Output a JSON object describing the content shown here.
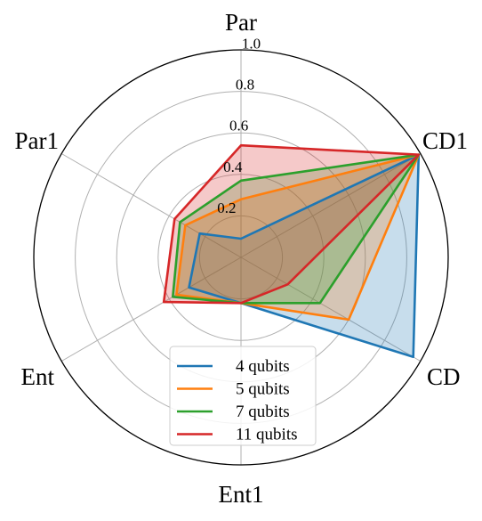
{
  "chart_data": {
    "type": "radar",
    "axes": [
      "Par",
      "CD1",
      "CD",
      "Ent1",
      "Ent",
      "Par1"
    ],
    "rlim": [
      0,
      1.0
    ],
    "r_ticks": [
      "0.2",
      "0.4",
      "0.6",
      "0.8",
      "1.0"
    ],
    "grid": true,
    "legend_position": "bottom-center",
    "series": [
      {
        "name": "4 qubits",
        "color": "#1f77b4",
        "values": [
          0.09,
          0.99,
          0.96,
          0.22,
          0.29,
          0.23
        ]
      },
      {
        "name": "5 qubits",
        "color": "#ff7f0e",
        "values": [
          0.28,
          0.99,
          0.6,
          0.22,
          0.36,
          0.31
        ]
      },
      {
        "name": "7 qubits",
        "color": "#2ca02c",
        "values": [
          0.37,
          0.99,
          0.44,
          0.22,
          0.38,
          0.34
        ]
      },
      {
        "name": "11 qubits",
        "color": "#d62728",
        "values": [
          0.54,
          0.99,
          0.26,
          0.22,
          0.43,
          0.37
        ]
      }
    ]
  }
}
